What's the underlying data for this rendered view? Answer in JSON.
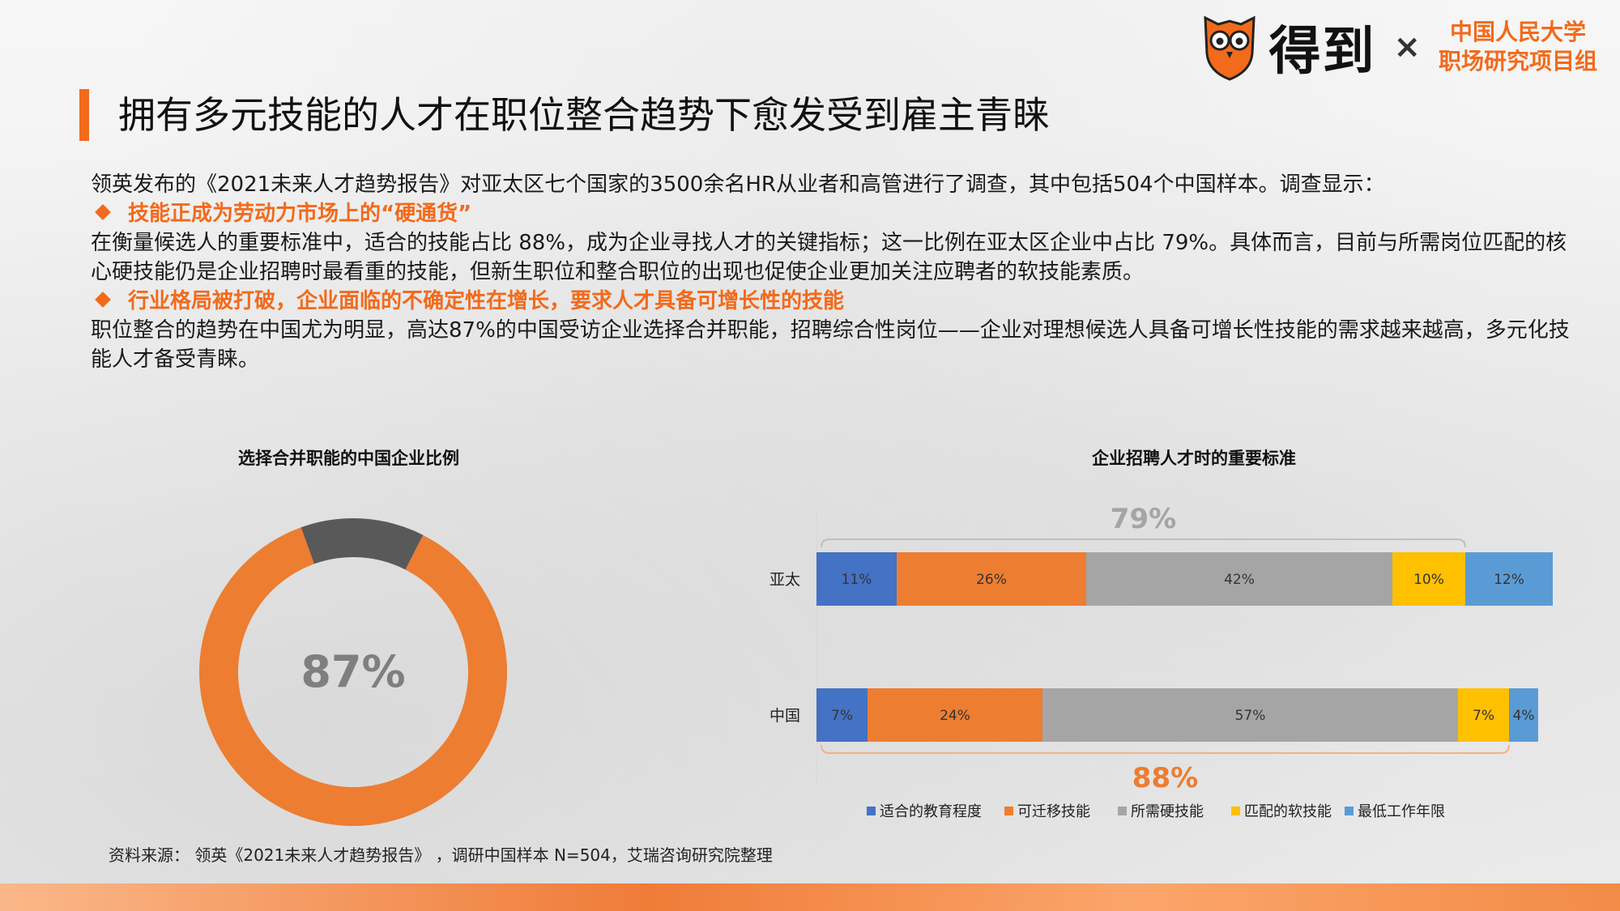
{
  "logo": {
    "brand": "得到",
    "times": "×",
    "org_line1": "中国人民大学",
    "org_line2": "职场研究项目组"
  },
  "title": "拥有多元技能的人才在职位整合趋势下愈发受到雇主青睐",
  "body": {
    "intro": "领英发布的《2021未来人才趋势报告》对亚太区七个国家的3500余名HR从业者和高管进行了调查，其中包括504个中国样本。调查显示：",
    "point1_title": "技能正成为劳动力市场上的“硬通货”",
    "point1_text": "在衡量候选人的重要标准中，适合的技能占比  88%，成为企业寻找人才的关键指标；这一比例在亚太区企业中占比  79%。具体而言，目前与所需岗位匹配的核心硬技能仍是企业招聘时最看重的技能，但新生职位和整合职位的出现也促使企业更加关注应聘者的软技能素质。",
    "point2_title": "行业格局被打破，企业面临的不确定性在增长，要求人才具备可增长性的技能",
    "point2_text": "职位整合的趋势在中国尤为明显，高达87%的中国受访企业选择合并职能，招聘综合性岗位——企业对理想候选人具备可增长性技能的需求越来越高，多元化技能人才备受青睐。"
  },
  "source": "资料来源： 领英《2021未来人才趋势报告》 ，调研中国样本 N=504，艾瑞咨询研究院整理",
  "chart_data": [
    {
      "type": "pie",
      "title": "选择合并职能的中国企业比例",
      "center_label": "87%",
      "slices": [
        {
          "value": 87,
          "color": "#ed7d31"
        },
        {
          "value": 13,
          "color": "#595959"
        }
      ]
    },
    {
      "type": "bar",
      "orientation": "horizontal",
      "stacked": true,
      "title": "企业招聘人才时的重要标准",
      "categories": [
        "亚太",
        "中国"
      ],
      "series": [
        {
          "name": "适合的教育程度",
          "values": [
            11,
            7
          ],
          "labels": [
            "11%",
            "7%"
          ],
          "color": "#4472c4"
        },
        {
          "name": "可迁移技能",
          "values": [
            26,
            24
          ],
          "labels": [
            "26%",
            "24%"
          ],
          "color": "#ed7d31"
        },
        {
          "name": "所需硬技能",
          "values": [
            42,
            57
          ],
          "labels": [
            "42%",
            "57%"
          ],
          "color": "#a5a5a5"
        },
        {
          "name": "匹配的软技能",
          "values": [
            10,
            7
          ],
          "labels": [
            "10%",
            "7%"
          ],
          "color": "#ffc000"
        },
        {
          "name": "最低工作年限",
          "values": [
            12,
            4
          ],
          "labels": [
            "12%",
            "4%"
          ],
          "color": "#5b9bd5"
        }
      ],
      "annotations": [
        {
          "category": "亚太",
          "text": "79%",
          "span_series": [
            0,
            3
          ]
        },
        {
          "category": "中国",
          "text": "88%",
          "span_series": [
            0,
            3
          ]
        }
      ],
      "xlim": [
        0,
        100
      ],
      "legend_position": "bottom"
    }
  ]
}
